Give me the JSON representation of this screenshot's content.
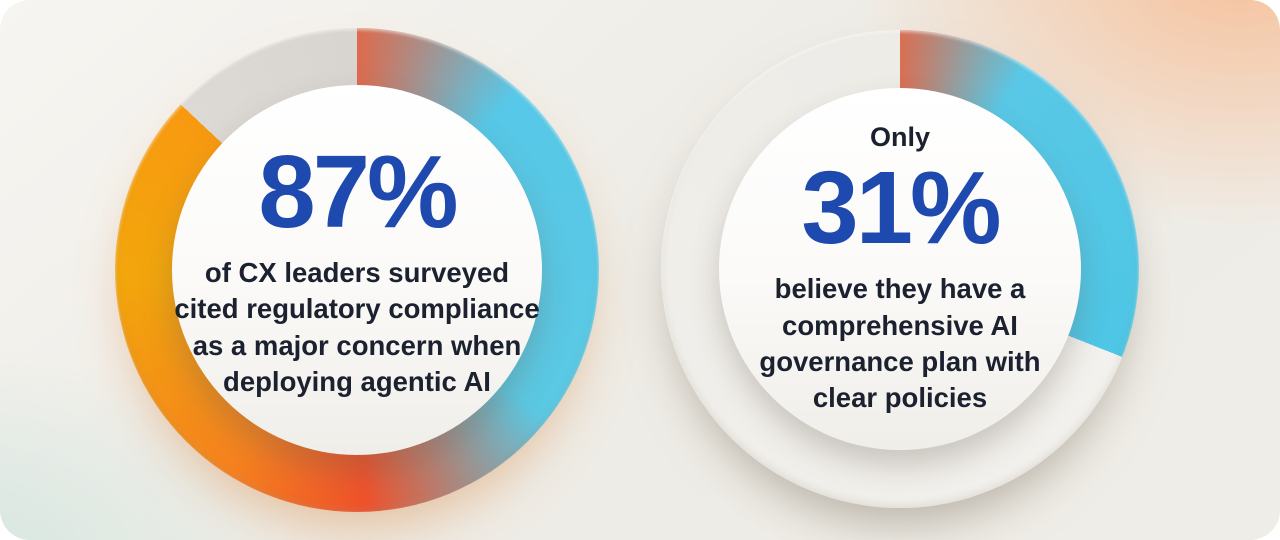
{
  "card": {
    "background_color": "#efede7",
    "corner_glow_top_right": "#f7bf98",
    "corner_glow_bottom_left": "#d2e5df"
  },
  "charts": [
    {
      "value": "87%",
      "percent": 87,
      "caption_lines": [
        "of CX leaders surveyed",
        "cited regulatory compliance",
        "as a major concern when",
        "deploying agentic AI"
      ],
      "value_color": "#1e49ae",
      "caption_color": "#1c2130",
      "ring": {
        "filled_gradient_stops": [
          "#dd6a4d",
          "#57c8e8",
          "#f0522b",
          "#f6821e",
          "#f2a60c",
          "#f89a10"
        ],
        "track_color": "#dbd7d2"
      }
    },
    {
      "prefix": "Only",
      "value": "31%",
      "percent": 31,
      "caption_lines": [
        "believe they have a",
        "comprehensive AI",
        "governance plan with",
        "clear policies"
      ],
      "value_color": "#1e49ae",
      "caption_color": "#1c2130",
      "ring": {
        "filled_gradient_stops": [
          "#d96f52",
          "#55c8e6",
          "#4ec6e5"
        ],
        "track_color": "#f3f1ed"
      }
    }
  ],
  "chart_data": [
    {
      "type": "pie",
      "subtype": "donut",
      "title": "87% of CX leaders surveyed cited regulatory compliance as a major concern when deploying agentic AI",
      "center_label": "87%",
      "start_angle_deg": 0,
      "direction": "clockwise",
      "slices": [
        {
          "label": "Cited regulatory compliance as a major concern when deploying agentic AI",
          "value": 87,
          "color": "multicolor gradient #dd6a4d → #57c8e8 → #f0522b → #f6821e → #f2a60c → #f89a10"
        },
        {
          "label": "Remainder",
          "value": 13,
          "color": "#dbd7d2"
        }
      ],
      "legend": "none",
      "data_labels": "center"
    },
    {
      "type": "pie",
      "subtype": "donut",
      "title": "Only 31% believe they have a comprehensive AI governance plan with clear policies",
      "center_label": "Only 31%",
      "start_angle_deg": 0,
      "direction": "clockwise",
      "slices": [
        {
          "label": "Believe they have a comprehensive AI governance plan with clear policies",
          "value": 31,
          "color": "#4ec6e5 (gradient start #d96f52)"
        },
        {
          "label": "Remainder",
          "value": 69,
          "color": "#f3f1ed"
        }
      ],
      "legend": "none",
      "data_labels": "center"
    }
  ]
}
